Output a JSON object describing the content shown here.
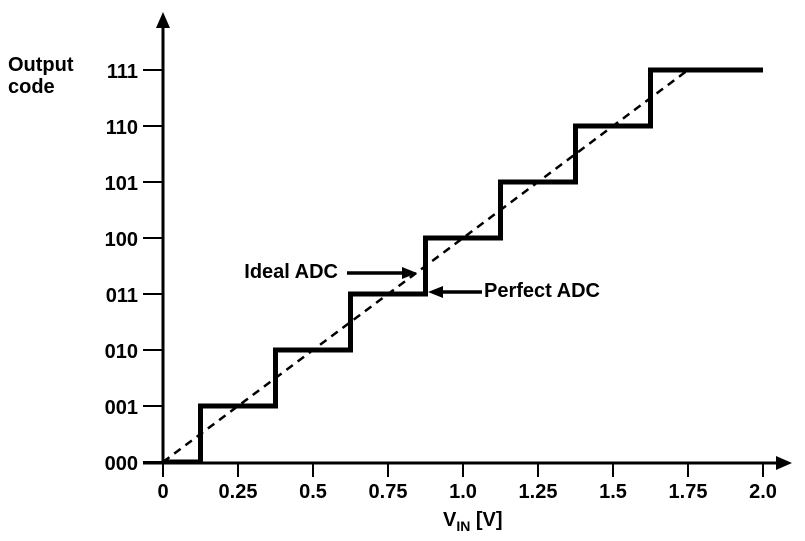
{
  "y_axis_title": "Output code",
  "x_axis_title": {
    "base": "V",
    "sub": "IN",
    "unit": " [V]"
  },
  "colors": {
    "line": "#000000",
    "background": "#ffffff",
    "text": "#000000"
  },
  "chart_data": {
    "type": "line",
    "title": "",
    "xlabel": "VIN [V]",
    "ylabel": "Output code",
    "xlim": [
      0,
      2.0
    ],
    "ylim": [
      0,
      7
    ],
    "grid": false,
    "x_tick_values": [
      0,
      0.25,
      0.5,
      0.75,
      1.0,
      1.25,
      1.5,
      1.75,
      2.0
    ],
    "x_tick_labels": [
      "0",
      "0.25",
      "0.5",
      "0.75",
      "1.0",
      "1.25",
      "1.5",
      "1.75",
      "2.0"
    ],
    "y_tick_values": [
      0,
      1,
      2,
      3,
      4,
      5,
      6,
      7
    ],
    "y_tick_labels": [
      "000",
      "001",
      "010",
      "011",
      "100",
      "101",
      "110",
      "111"
    ],
    "series": [
      {
        "name": "Perfect ADC",
        "style": "staircase-solid",
        "line_width": 5,
        "points": [
          [
            0,
            0
          ],
          [
            0.125,
            0
          ],
          [
            0.125,
            1
          ],
          [
            0.375,
            1
          ],
          [
            0.375,
            2
          ],
          [
            0.625,
            2
          ],
          [
            0.625,
            3
          ],
          [
            0.875,
            3
          ],
          [
            0.875,
            4
          ],
          [
            1.125,
            4
          ],
          [
            1.125,
            5
          ],
          [
            1.375,
            5
          ],
          [
            1.375,
            6
          ],
          [
            1.625,
            6
          ],
          [
            1.625,
            7
          ],
          [
            2.0,
            7
          ]
        ]
      },
      {
        "name": "Ideal ADC",
        "style": "dashed-line",
        "line_width": 2.5,
        "points": [
          [
            0,
            0
          ],
          [
            1.75,
            7
          ]
        ]
      }
    ],
    "annotations": [
      {
        "text": "Ideal ADC",
        "direction": "right",
        "points_to": "dashed ideal line",
        "tip_x_v": 0.84,
        "tip_y_code": 3.38
      },
      {
        "text": "Perfect ADC",
        "direction": "left",
        "points_to": "staircase riser at 0.875 V",
        "tip_x_v": 0.885,
        "tip_y_code": 3.05
      }
    ]
  }
}
